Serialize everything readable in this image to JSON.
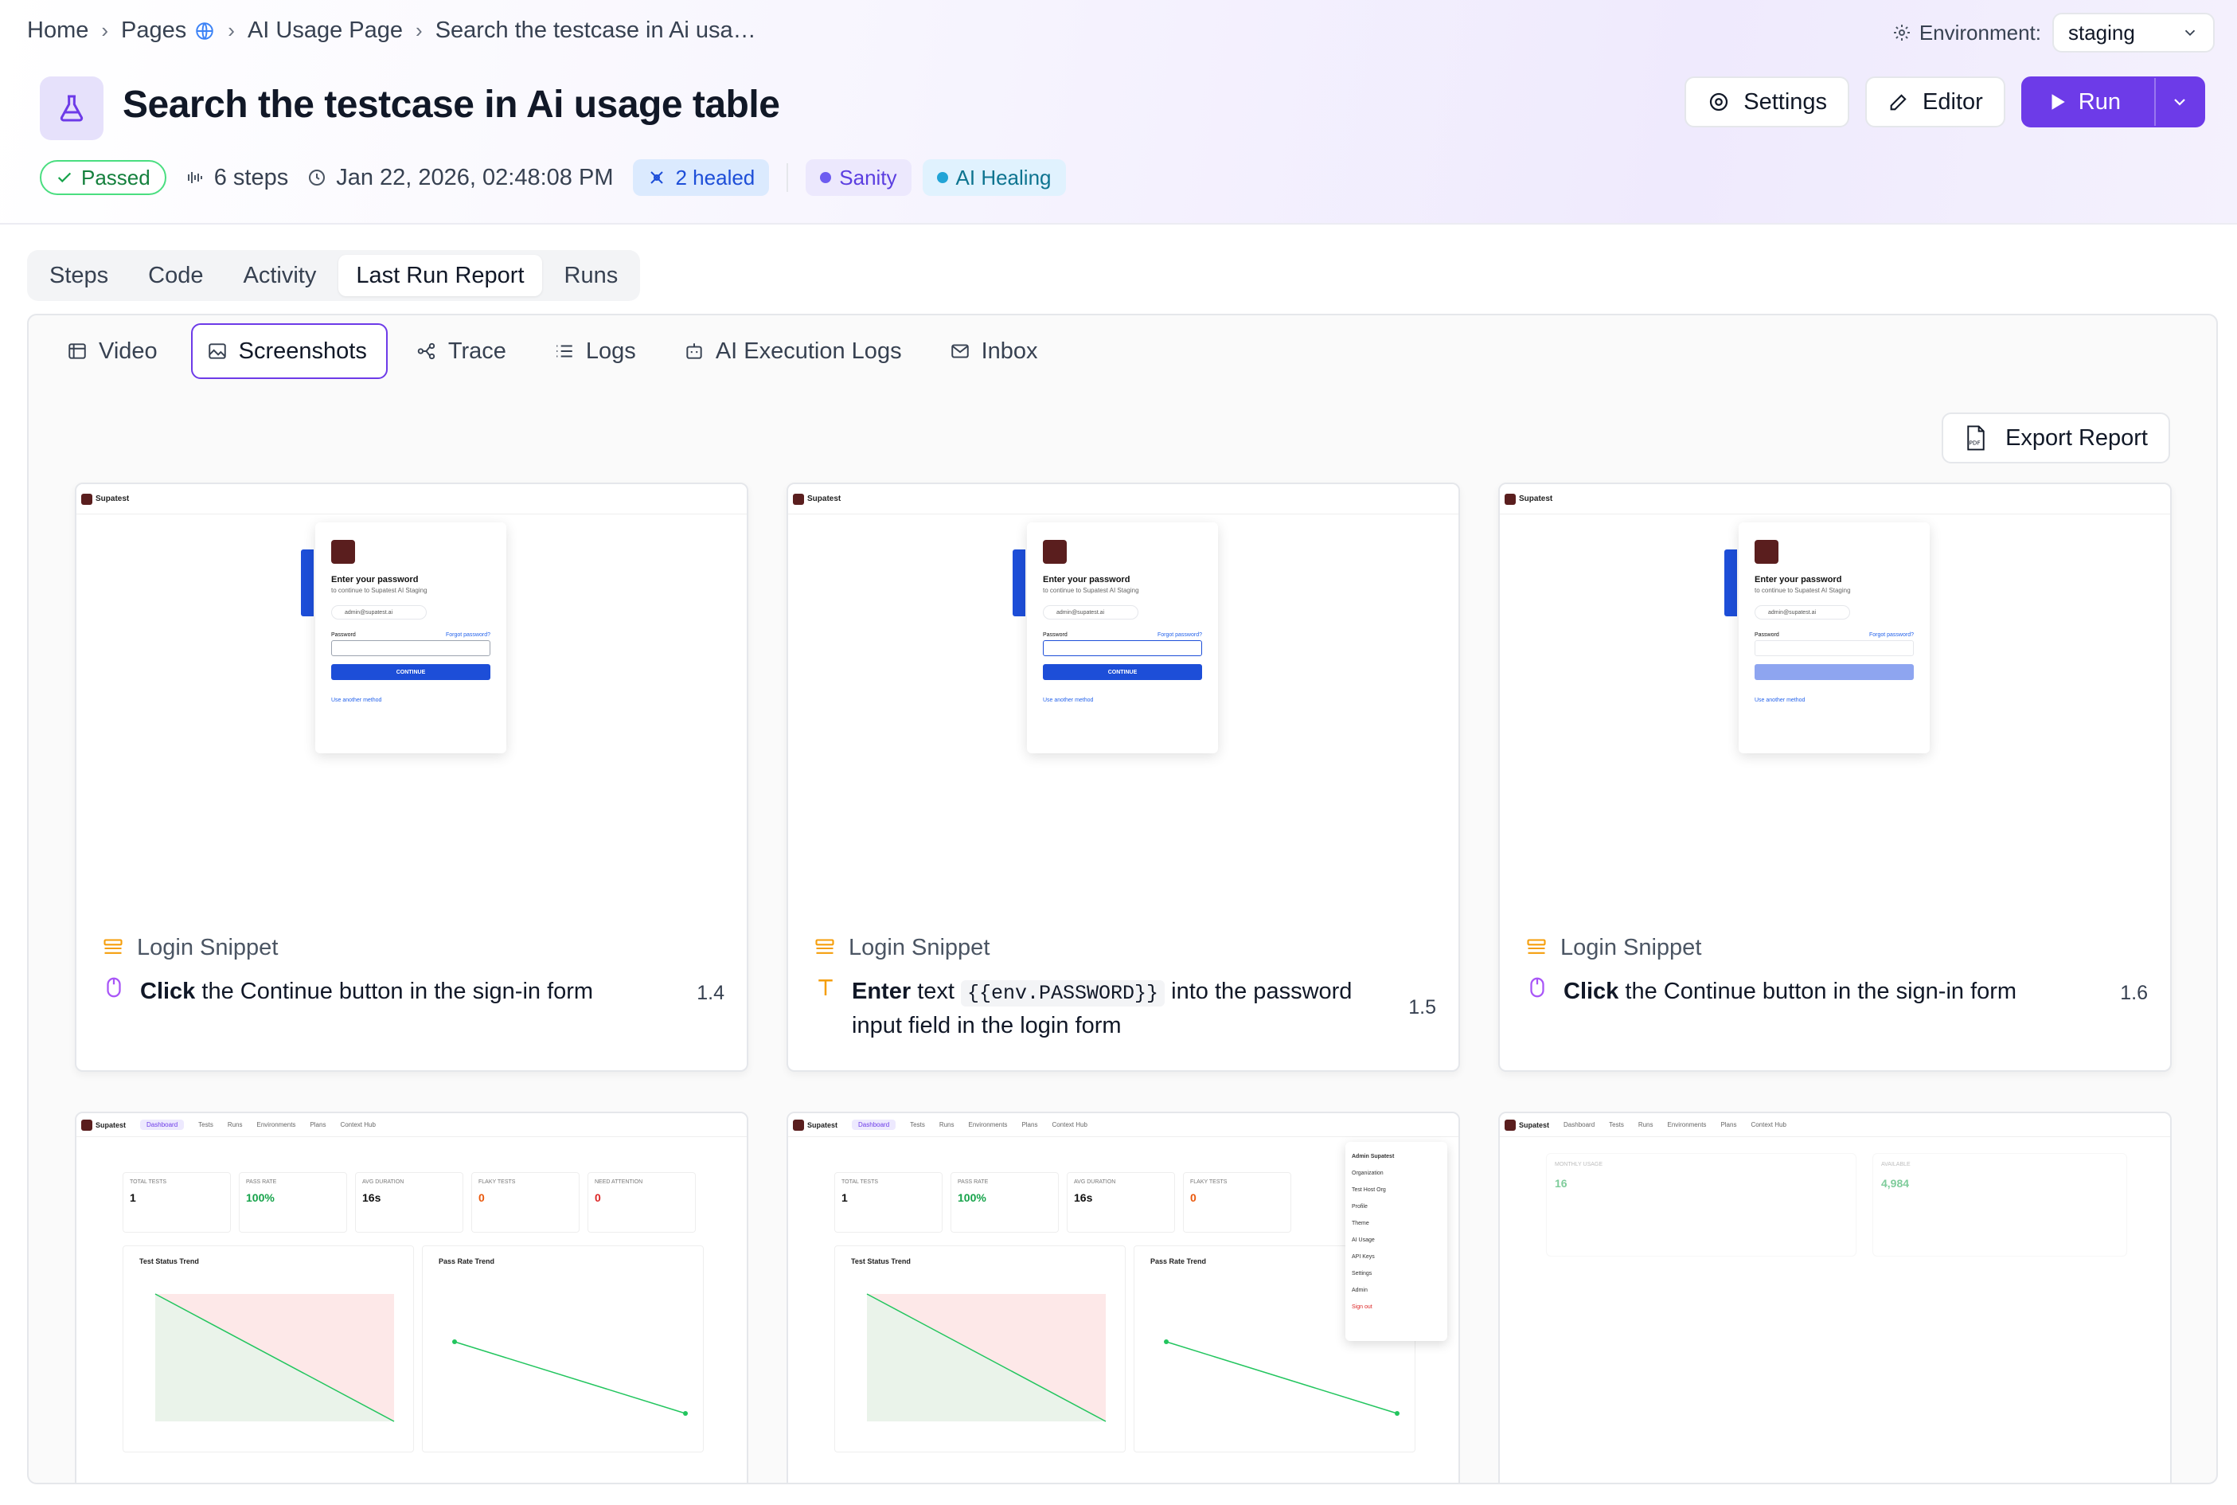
{
  "breadcrumb": [
    "Home",
    "Pages",
    "AI Usage Page",
    "Search the testcase in Ai usa…"
  ],
  "environment": {
    "label": "Environment:",
    "value": "staging"
  },
  "title": "Search the testcase in Ai usage table",
  "actions": {
    "settings": "Settings",
    "editor": "Editor",
    "run": "Run"
  },
  "meta": {
    "status": "Passed",
    "steps": "6 steps",
    "date": "Jan 22, 2026, 02:48:08 PM",
    "healed": "2 healed",
    "tags": [
      "Sanity",
      "AI Healing"
    ]
  },
  "main_tabs": [
    "Steps",
    "Code",
    "Activity",
    "Last Run Report",
    "Runs"
  ],
  "active_main_tab": "Last Run Report",
  "sub_tabs": [
    "Video",
    "Screenshots",
    "Trace",
    "Logs",
    "AI Execution Logs",
    "Inbox"
  ],
  "active_sub_tab": "Screenshots",
  "export_label": "Export Report",
  "cards": [
    {
      "snippet": "Login Snippet",
      "action": "Click",
      "text": "the Continue button in the sign-in form",
      "num": "1.4"
    },
    {
      "snippet": "Login Snippet",
      "action": "Enter",
      "text_pre": "text",
      "code": "{{env.PASSWORD}}",
      "text": "into the password input field in the login form",
      "num": "1.5"
    },
    {
      "snippet": "Login Snippet",
      "action": "Click",
      "text": "the Continue button in the sign-in form",
      "num": "1.6"
    }
  ],
  "shot_login": {
    "brand": "Supatest",
    "heading": "Enter your password",
    "sub": "to continue to Supatest AI Staging",
    "email": "admin@supatest.ai",
    "password_label": "Password",
    "forgot": "Forgot password?",
    "button": "CONTINUE",
    "other": "Use another method"
  },
  "shot_dash": {
    "nav": [
      "Dashboard",
      "Tests",
      "Runs",
      "Environments",
      "Plans",
      "Context Hub"
    ],
    "kpis": [
      {
        "label": "TOTAL TESTS",
        "value": "1"
      },
      {
        "label": "PASS RATE",
        "value": "100%"
      },
      {
        "label": "AVG DURATION",
        "value": "16s"
      },
      {
        "label": "FLAKY TESTS",
        "value": "0"
      },
      {
        "label": "NEED ATTENTION",
        "value": "0"
      }
    ],
    "chart1": "Test Status Trend",
    "chart2": "Pass Rate Trend",
    "menu": [
      "Admin Supatest",
      "Organization",
      "Test Host Org",
      "Profile",
      "Theme",
      "AI Usage",
      "API Keys",
      "Settings",
      "Admin",
      "Sign out"
    ],
    "usage": {
      "monthly_label": "MONTHLY USAGE",
      "monthly_value": "16",
      "available_label": "AVAILABLE",
      "available_value": "4,984"
    }
  }
}
